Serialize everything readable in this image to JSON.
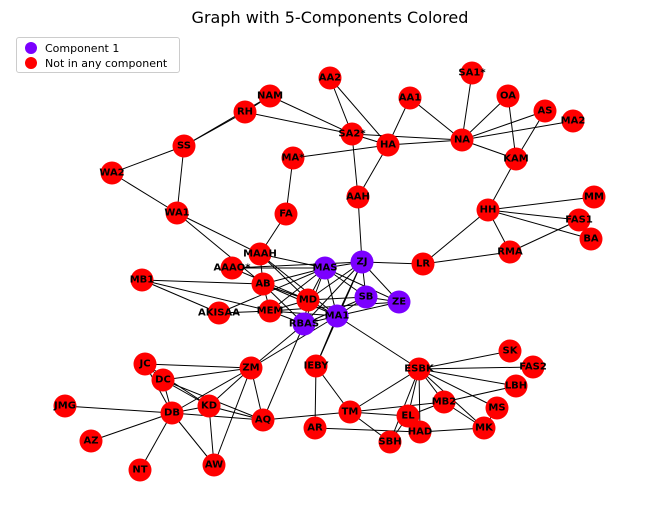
{
  "title": "Graph with 5-Components Colored",
  "legend": {
    "items": [
      {
        "label": "Component 1",
        "color": "#7b00ff"
      },
      {
        "label": "Not in any component",
        "color": "#ff0000"
      }
    ]
  },
  "colors": {
    "component": "#7b00ff",
    "other": "#ff0000",
    "edge": "#000000"
  },
  "nodes": [
    {
      "id": "AA2",
      "component": false
    },
    {
      "id": "NAM",
      "component": false
    },
    {
      "id": "RH",
      "component": false
    },
    {
      "id": "AA1",
      "component": false
    },
    {
      "id": "SA1*",
      "component": false
    },
    {
      "id": "OA",
      "component": false
    },
    {
      "id": "AS",
      "component": false
    },
    {
      "id": "MA2",
      "component": false
    },
    {
      "id": "SA2*",
      "component": false
    },
    {
      "id": "HA",
      "component": false
    },
    {
      "id": "NA",
      "component": false
    },
    {
      "id": "SS",
      "component": false
    },
    {
      "id": "MA*",
      "component": false
    },
    {
      "id": "KAM",
      "component": false
    },
    {
      "id": "WA2",
      "component": false
    },
    {
      "id": "AAH",
      "component": false
    },
    {
      "id": "MM",
      "component": false
    },
    {
      "id": "WA1",
      "component": false
    },
    {
      "id": "FA",
      "component": false
    },
    {
      "id": "HH",
      "component": false
    },
    {
      "id": "FAS1",
      "component": false
    },
    {
      "id": "BA",
      "component": false
    },
    {
      "id": "MAAH",
      "component": false
    },
    {
      "id": "ZJ",
      "component": true
    },
    {
      "id": "LR",
      "component": false
    },
    {
      "id": "RMA",
      "component": false
    },
    {
      "id": "MAS",
      "component": true
    },
    {
      "id": "AAAO*",
      "component": false
    },
    {
      "id": "MB1",
      "component": false
    },
    {
      "id": "AB",
      "component": false
    },
    {
      "id": "SB",
      "component": true
    },
    {
      "id": "ZE",
      "component": true
    },
    {
      "id": "MD",
      "component": false
    },
    {
      "id": "AKISAA",
      "component": false
    },
    {
      "id": "MEM",
      "component": false
    },
    {
      "id": "MA1",
      "component": true
    },
    {
      "id": "RBAS",
      "component": true
    },
    {
      "id": "JC",
      "component": false
    },
    {
      "id": "ZM",
      "component": false
    },
    {
      "id": "IEBY",
      "component": false
    },
    {
      "id": "SK",
      "component": false
    },
    {
      "id": "FAS2",
      "component": false
    },
    {
      "id": "ESBK",
      "component": false
    },
    {
      "id": "DC",
      "component": false
    },
    {
      "id": "LBH",
      "component": false
    },
    {
      "id": "JMG",
      "component": false
    },
    {
      "id": "KD",
      "component": false
    },
    {
      "id": "MB2",
      "component": false
    },
    {
      "id": "MS",
      "component": false
    },
    {
      "id": "DB",
      "component": false
    },
    {
      "id": "TM",
      "component": false
    },
    {
      "id": "AQ",
      "component": false
    },
    {
      "id": "EL",
      "component": false
    },
    {
      "id": "AR",
      "component": false
    },
    {
      "id": "MK",
      "component": false
    },
    {
      "id": "HAD",
      "component": false
    },
    {
      "id": "AZ",
      "component": false
    },
    {
      "id": "SBH",
      "component": false
    },
    {
      "id": "AW",
      "component": false
    },
    {
      "id": "NT",
      "component": false
    }
  ],
  "edges": [
    [
      "NAM",
      "RH"
    ],
    [
      "NAM",
      "SA2*"
    ],
    [
      "RH",
      "SA2*"
    ],
    [
      "RH",
      "SS"
    ],
    [
      "NAM",
      "SS"
    ],
    [
      "AA2",
      "SA2*"
    ],
    [
      "AA2",
      "HA"
    ],
    [
      "AA1",
      "HA"
    ],
    [
      "AA1",
      "NA"
    ],
    [
      "SA2*",
      "HA"
    ],
    [
      "SA2*",
      "NA"
    ],
    [
      "SA2*",
      "AAH"
    ],
    [
      "HA",
      "NA"
    ],
    [
      "HA",
      "AAH"
    ],
    [
      "HA",
      "MA*"
    ],
    [
      "NA",
      "SA1*"
    ],
    [
      "NA",
      "OA"
    ],
    [
      "NA",
      "AS"
    ],
    [
      "NA",
      "MA2"
    ],
    [
      "NA",
      "KAM"
    ],
    [
      "OA",
      "KAM"
    ],
    [
      "AS",
      "KAM"
    ],
    [
      "KAM",
      "HH"
    ],
    [
      "SS",
      "WA2"
    ],
    [
      "SS",
      "WA1"
    ],
    [
      "WA2",
      "WA1"
    ],
    [
      "WA1",
      "MAAH"
    ],
    [
      "WA1",
      "AB"
    ],
    [
      "MA*",
      "FA"
    ],
    [
      "FA",
      "MAAH"
    ],
    [
      "AAH",
      "ZJ"
    ],
    [
      "HH",
      "MM"
    ],
    [
      "HH",
      "FAS1"
    ],
    [
      "HH",
      "BA"
    ],
    [
      "HH",
      "RMA"
    ],
    [
      "HH",
      "LR"
    ],
    [
      "FAS1",
      "RMA"
    ],
    [
      "BA",
      "FAS1"
    ],
    [
      "LR",
      "RMA"
    ],
    [
      "MAAH",
      "MAS"
    ],
    [
      "MAAH",
      "AB"
    ],
    [
      "MAAH",
      "MD"
    ],
    [
      "MAAH",
      "MA1"
    ],
    [
      "AAAO*",
      "MAS"
    ],
    [
      "AAAO*",
      "ZJ"
    ],
    [
      "AAAO*",
      "MD"
    ],
    [
      "MB1",
      "AB"
    ],
    [
      "MB1",
      "AKISAA"
    ],
    [
      "MB1",
      "MEM"
    ],
    [
      "AB",
      "MAS"
    ],
    [
      "AB",
      "MD"
    ],
    [
      "AB",
      "MEM"
    ],
    [
      "AB",
      "RBAS"
    ],
    [
      "AB",
      "MA1"
    ],
    [
      "AKISAA",
      "MAS"
    ],
    [
      "AKISAA",
      "MEM"
    ],
    [
      "MAS",
      "ZJ"
    ],
    [
      "MAS",
      "SB"
    ],
    [
      "MAS",
      "MD"
    ],
    [
      "MAS",
      "MA1"
    ],
    [
      "MAS",
      "RBAS"
    ],
    [
      "MAS",
      "MEM"
    ],
    [
      "MAS",
      "ZE"
    ],
    [
      "ZJ",
      "SB"
    ],
    [
      "ZJ",
      "ZE"
    ],
    [
      "ZJ",
      "MA1"
    ],
    [
      "ZJ",
      "RBAS"
    ],
    [
      "ZJ",
      "LR"
    ],
    [
      "ZJ",
      "MD"
    ],
    [
      "ZJ",
      "IEBY"
    ],
    [
      "SB",
      "ZE"
    ],
    [
      "SB",
      "MA1"
    ],
    [
      "SB",
      "RBAS"
    ],
    [
      "SB",
      "MD"
    ],
    [
      "ZE",
      "MA1"
    ],
    [
      "ZE",
      "MEM"
    ],
    [
      "MD",
      "MEM"
    ],
    [
      "MD",
      "MA1"
    ],
    [
      "MD",
      "RBAS"
    ],
    [
      "MEM",
      "MA1"
    ],
    [
      "MEM",
      "RBAS"
    ],
    [
      "MA1",
      "RBAS"
    ],
    [
      "MA1",
      "ESBK"
    ],
    [
      "MA1",
      "ZM"
    ],
    [
      "MA1",
      "IEBY"
    ],
    [
      "RBAS",
      "ZM"
    ],
    [
      "RBAS",
      "AQ"
    ],
    [
      "JC",
      "ZM"
    ],
    [
      "JC",
      "DC"
    ],
    [
      "JC",
      "KD"
    ],
    [
      "JC",
      "DB"
    ],
    [
      "ZM",
      "DC"
    ],
    [
      "ZM",
      "KD"
    ],
    [
      "ZM",
      "AQ"
    ],
    [
      "ZM",
      "DB"
    ],
    [
      "ZM",
      "AW"
    ],
    [
      "IEBY",
      "TM"
    ],
    [
      "IEBY",
      "AR"
    ],
    [
      "DC",
      "KD"
    ],
    [
      "DC",
      "DB"
    ],
    [
      "DC",
      "AQ"
    ],
    [
      "KD",
      "DB"
    ],
    [
      "KD",
      "AQ"
    ],
    [
      "KD",
      "AW"
    ],
    [
      "JMG",
      "DB"
    ],
    [
      "DB",
      "AZ"
    ],
    [
      "DB",
      "NT"
    ],
    [
      "DB",
      "AW"
    ],
    [
      "DB",
      "AQ"
    ],
    [
      "AQ",
      "TM"
    ],
    [
      "AR",
      "HAD"
    ],
    [
      "TM",
      "SBH"
    ],
    [
      "TM",
      "EL"
    ],
    [
      "TM",
      "ESBK"
    ],
    [
      "TM",
      "MB2"
    ],
    [
      "ESBK",
      "SK"
    ],
    [
      "ESBK",
      "FAS2"
    ],
    [
      "ESBK",
      "LBH"
    ],
    [
      "ESBK",
      "MB2"
    ],
    [
      "ESBK",
      "MS"
    ],
    [
      "ESBK",
      "MK"
    ],
    [
      "ESBK",
      "EL"
    ],
    [
      "ESBK",
      "HAD"
    ],
    [
      "ESBK",
      "SBH"
    ],
    [
      "EL",
      "HAD"
    ],
    [
      "EL",
      "MB2"
    ],
    [
      "EL",
      "SBH"
    ],
    [
      "MB2",
      "LBH"
    ],
    [
      "MB2",
      "MK"
    ],
    [
      "HAD",
      "MK"
    ],
    [
      "MK",
      "MS"
    ]
  ]
}
